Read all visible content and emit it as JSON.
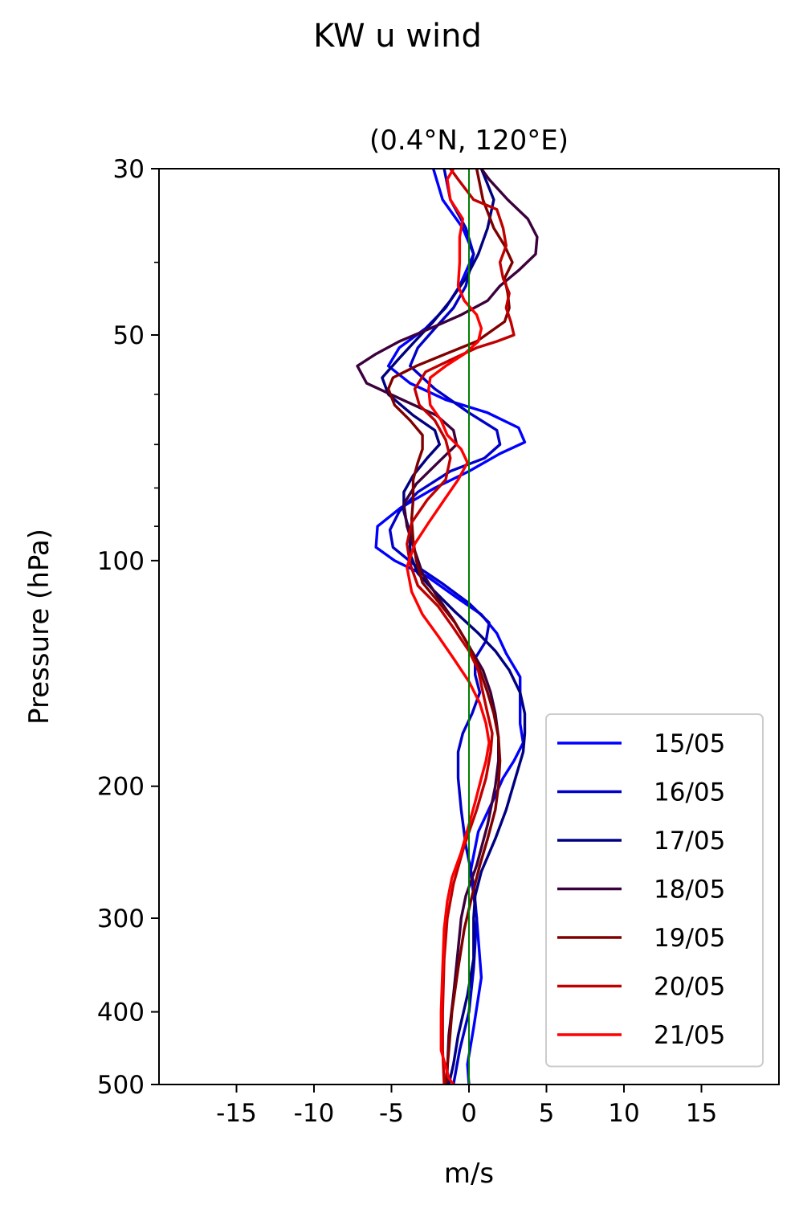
{
  "figure": {
    "suptitle": "KW u wind"
  },
  "chart_data": {
    "type": "line",
    "title": "(0.4°N, 120°E)",
    "xlabel": "m/s",
    "ylabel": "Pressure (hPa)",
    "xlim": [
      -20,
      20
    ],
    "ylim": [
      500,
      30
    ],
    "yscale": "log",
    "x_ticks": [
      -15,
      -10,
      -5,
      0,
      5,
      10,
      15
    ],
    "x_tick_labels": [
      "-15",
      "-10",
      "-5",
      "0",
      "5",
      "10",
      "15"
    ],
    "y_ticks": [
      30,
      50,
      100,
      200,
      300,
      400,
      500
    ],
    "y_tick_labels": [
      "30",
      "50",
      "100",
      "200",
      "300",
      "400",
      "500"
    ],
    "y_minor_ticks": [
      40,
      60,
      70,
      80,
      90
    ],
    "reference_line": {
      "x": 0,
      "color": "#008000"
    },
    "legend_position": "lower right",
    "series": [
      {
        "name": "15/05",
        "color": "#0000ff",
        "points": [
          [
            -2.3,
            30
          ],
          [
            -1.7,
            33
          ],
          [
            -0.4,
            36
          ],
          [
            0.3,
            39
          ],
          [
            -0.6,
            43
          ],
          [
            -1.5,
            46
          ],
          [
            -2.8,
            49
          ],
          [
            -4.5,
            52
          ],
          [
            -5.2,
            55
          ],
          [
            -3.8,
            58
          ],
          [
            -1.5,
            61
          ],
          [
            1.2,
            63.5
          ],
          [
            3.2,
            66.5
          ],
          [
            3.6,
            69.5
          ],
          [
            2.0,
            72
          ],
          [
            0,
            76
          ],
          [
            -2.2,
            80
          ],
          [
            -4.4,
            85
          ],
          [
            -5.9,
            90
          ],
          [
            -6.0,
            96
          ],
          [
            -4.8,
            100
          ],
          [
            -2.7,
            105
          ],
          [
            -0.8,
            112
          ],
          [
            0.8,
            118
          ],
          [
            1.8,
            125
          ],
          [
            2.4,
            133
          ],
          [
            3.3,
            143
          ],
          [
            3.3,
            155
          ],
          [
            3.3,
            165
          ],
          [
            3.5,
            175
          ],
          [
            2.9,
            185
          ],
          [
            2.2,
            195
          ],
          [
            1.5,
            210
          ],
          [
            0.6,
            230
          ],
          [
            0.1,
            260
          ],
          [
            0.5,
            300
          ],
          [
            0.8,
            360
          ],
          [
            0.3,
            420
          ],
          [
            -0.1,
            470
          ],
          [
            0,
            500
          ]
        ]
      },
      {
        "name": "16/05",
        "color": "#0000c8",
        "points": [
          [
            -1.6,
            30
          ],
          [
            -1.2,
            33
          ],
          [
            -0.2,
            36
          ],
          [
            0.3,
            39
          ],
          [
            -0.2,
            43
          ],
          [
            -1.0,
            46
          ],
          [
            -2.2,
            49
          ],
          [
            -3.3,
            52
          ],
          [
            -3.8,
            55
          ],
          [
            -2.2,
            59
          ],
          [
            0,
            63.5
          ],
          [
            1.8,
            67
          ],
          [
            2.0,
            70
          ],
          [
            1.0,
            73
          ],
          [
            -1.2,
            76
          ],
          [
            -3.3,
            81
          ],
          [
            -4.5,
            86
          ],
          [
            -5.1,
            91
          ],
          [
            -4.9,
            96
          ],
          [
            -3.6,
            101
          ],
          [
            -1.8,
            107
          ],
          [
            0,
            114
          ],
          [
            1.3,
            121
          ],
          [
            1.1,
            128
          ],
          [
            0.4,
            135
          ],
          [
            0.4,
            142
          ],
          [
            0.7,
            150
          ],
          [
            0.2,
            160
          ],
          [
            -0.4,
            170
          ],
          [
            -0.7,
            180
          ],
          [
            -0.7,
            195
          ],
          [
            -0.5,
            215
          ],
          [
            -0.2,
            240
          ],
          [
            0.3,
            270
          ],
          [
            0.5,
            300
          ],
          [
            0.3,
            350
          ],
          [
            0,
            400
          ],
          [
            -0.6,
            450
          ],
          [
            -1.0,
            500
          ]
        ]
      },
      {
        "name": "17/05",
        "color": "#000080",
        "points": [
          [
            0.8,
            30
          ],
          [
            1.6,
            33
          ],
          [
            1.2,
            36
          ],
          [
            0.6,
            39
          ],
          [
            -0.2,
            42
          ],
          [
            -1.2,
            45
          ],
          [
            -2.3,
            48
          ],
          [
            -3.5,
            51
          ],
          [
            -4.6,
            54
          ],
          [
            -5.6,
            57
          ],
          [
            -5.2,
            60
          ],
          [
            -3.6,
            64
          ],
          [
            -2.2,
            67
          ],
          [
            -1.9,
            70
          ],
          [
            -2.7,
            73
          ],
          [
            -3.6,
            77
          ],
          [
            -4.2,
            81
          ],
          [
            -4.2,
            86
          ],
          [
            -3.8,
            92
          ],
          [
            -3.8,
            98
          ],
          [
            -3.3,
            104
          ],
          [
            -2.2,
            110
          ],
          [
            -0.9,
            117
          ],
          [
            0.6,
            125
          ],
          [
            1.7,
            132
          ],
          [
            2.6,
            140
          ],
          [
            3.3,
            150
          ],
          [
            3.6,
            160
          ],
          [
            3.6,
            170
          ],
          [
            3.5,
            180
          ],
          [
            3.0,
            195
          ],
          [
            2.4,
            215
          ],
          [
            1.7,
            235
          ],
          [
            0.8,
            260
          ],
          [
            0.4,
            280
          ],
          [
            0.3,
            300
          ],
          [
            0.3,
            340
          ],
          [
            -0.1,
            380
          ],
          [
            -0.7,
            430
          ],
          [
            -1.0,
            470
          ],
          [
            -1.3,
            500
          ]
        ]
      },
      {
        "name": "18/05",
        "color": "#3c003c",
        "points": [
          [
            0.8,
            30
          ],
          [
            1.3,
            31
          ],
          [
            2.5,
            33
          ],
          [
            3.8,
            35
          ],
          [
            4.4,
            37
          ],
          [
            4.3,
            39
          ],
          [
            3.2,
            41
          ],
          [
            2.0,
            43
          ],
          [
            1.2,
            45
          ],
          [
            -0.5,
            47
          ],
          [
            -2.5,
            49
          ],
          [
            -4.5,
            51
          ],
          [
            -6.0,
            53
          ],
          [
            -7.2,
            55
          ],
          [
            -6.6,
            58
          ],
          [
            -4.3,
            61
          ],
          [
            -2.1,
            64
          ],
          [
            -1.0,
            67
          ],
          [
            -0.8,
            70
          ],
          [
            -2.0,
            74
          ],
          [
            -3.4,
            79
          ],
          [
            -4.2,
            84
          ],
          [
            -4.0,
            90
          ],
          [
            -3.5,
            97
          ],
          [
            -3.0,
            104
          ],
          [
            -2.0,
            112
          ],
          [
            -1.0,
            120
          ],
          [
            0,
            130
          ],
          [
            0.9,
            140
          ],
          [
            1.4,
            150
          ],
          [
            1.7,
            160
          ],
          [
            1.9,
            172
          ],
          [
            1.9,
            185
          ],
          [
            1.7,
            200
          ],
          [
            1.2,
            225
          ],
          [
            0.5,
            255
          ],
          [
            -0.2,
            280
          ],
          [
            -0.5,
            300
          ],
          [
            -0.7,
            330
          ],
          [
            -1.0,
            380
          ],
          [
            -1.3,
            430
          ],
          [
            -1.4,
            480
          ],
          [
            -1.4,
            500
          ]
        ]
      },
      {
        "name": "19/05",
        "color": "#800000",
        "points": [
          [
            0.5,
            30
          ],
          [
            0.9,
            33
          ],
          [
            1.6,
            36
          ],
          [
            2.3,
            38
          ],
          [
            2.8,
            40
          ],
          [
            2.3,
            42
          ],
          [
            2.5,
            44
          ],
          [
            2.6,
            46
          ],
          [
            2.3,
            48
          ],
          [
            0.5,
            51
          ],
          [
            -1.5,
            53
          ],
          [
            -3.4,
            55
          ],
          [
            -4.9,
            57
          ],
          [
            -5.2,
            59
          ],
          [
            -4.8,
            62
          ],
          [
            -3.8,
            65
          ],
          [
            -3.0,
            68
          ],
          [
            -3.0,
            71
          ],
          [
            -3.3,
            74
          ],
          [
            -3.6,
            78
          ],
          [
            -3.6,
            83
          ],
          [
            -3.7,
            88
          ],
          [
            -3.6,
            94
          ],
          [
            -3.4,
            100
          ],
          [
            -3.0,
            107
          ],
          [
            -1.9,
            114
          ],
          [
            -0.9,
            121
          ],
          [
            0,
            130
          ],
          [
            0.7,
            140
          ],
          [
            1.2,
            150
          ],
          [
            1.6,
            160
          ],
          [
            1.9,
            172
          ],
          [
            2.0,
            185
          ],
          [
            1.9,
            200
          ],
          [
            1.7,
            215
          ],
          [
            1.2,
            235
          ],
          [
            0.7,
            255
          ],
          [
            0.2,
            280
          ],
          [
            -0.3,
            310
          ],
          [
            -0.7,
            350
          ],
          [
            -1.1,
            400
          ],
          [
            -1.3,
            450
          ],
          [
            -1.5,
            500
          ]
        ]
      },
      {
        "name": "20/05",
        "color": "#c00000",
        "points": [
          [
            -1.2,
            30
          ],
          [
            -0.7,
            31
          ],
          [
            0.3,
            33
          ],
          [
            1.8,
            34
          ],
          [
            2.2,
            36
          ],
          [
            2.4,
            38
          ],
          [
            2.0,
            40
          ],
          [
            2.2,
            42
          ],
          [
            2.6,
            44
          ],
          [
            2.4,
            46
          ],
          [
            2.7,
            48
          ],
          [
            2.9,
            50
          ],
          [
            1.8,
            51
          ],
          [
            0.5,
            52
          ],
          [
            -1.2,
            54
          ],
          [
            -2.8,
            56
          ],
          [
            -3.5,
            59
          ],
          [
            -3.2,
            62
          ],
          [
            -2.2,
            65
          ],
          [
            -1.5,
            69
          ],
          [
            -1.2,
            73
          ],
          [
            -1.5,
            78
          ],
          [
            -2.7,
            83
          ],
          [
            -3.7,
            89
          ],
          [
            -4.0,
            95
          ],
          [
            -3.8,
            101
          ],
          [
            -3.3,
            108
          ],
          [
            -2.0,
            115
          ],
          [
            -1.0,
            123
          ],
          [
            0,
            132
          ],
          [
            0.6,
            140
          ],
          [
            0.9,
            150
          ],
          [
            1.2,
            160
          ],
          [
            1.5,
            170
          ],
          [
            1.4,
            180
          ],
          [
            1.1,
            195
          ],
          [
            0.5,
            215
          ],
          [
            -0.3,
            240
          ],
          [
            -1.0,
            270
          ],
          [
            -1.4,
            300
          ],
          [
            -1.6,
            340
          ],
          [
            -1.7,
            400
          ],
          [
            -1.7,
            450
          ],
          [
            -1.6,
            500
          ]
        ]
      },
      {
        "name": "21/05",
        "color": "#ff0000",
        "points": [
          [
            -1.0,
            30
          ],
          [
            -1.4,
            31
          ],
          [
            -1.2,
            33
          ],
          [
            -0.4,
            35
          ],
          [
            -0.6,
            37
          ],
          [
            -0.6,
            40
          ],
          [
            -0.7,
            43
          ],
          [
            -0.3,
            45
          ],
          [
            0.5,
            47
          ],
          [
            0.8,
            49
          ],
          [
            0.6,
            51
          ],
          [
            -0.3,
            53
          ],
          [
            -1.5,
            55
          ],
          [
            -2.5,
            57
          ],
          [
            -2.6,
            59
          ],
          [
            -2.5,
            62
          ],
          [
            -1.8,
            65
          ],
          [
            -1.4,
            68
          ],
          [
            -0.5,
            71
          ],
          [
            -0.1,
            74
          ],
          [
            -0.7,
            78
          ],
          [
            -1.6,
            83
          ],
          [
            -2.6,
            89
          ],
          [
            -3.5,
            95
          ],
          [
            -4.0,
            102
          ],
          [
            -3.7,
            110
          ],
          [
            -3.0,
            118
          ],
          [
            -2.0,
            126
          ],
          [
            -1.0,
            135
          ],
          [
            0,
            145
          ],
          [
            0.7,
            155
          ],
          [
            1.1,
            165
          ],
          [
            1.3,
            175
          ],
          [
            1.1,
            185
          ],
          [
            0.8,
            195
          ],
          [
            0.4,
            210
          ],
          [
            0,
            225
          ],
          [
            -0.5,
            245
          ],
          [
            -1.1,
            265
          ],
          [
            -1.4,
            285
          ],
          [
            -1.6,
            310
          ],
          [
            -1.7,
            350
          ],
          [
            -1.8,
            400
          ],
          [
            -1.8,
            450
          ],
          [
            -1.3,
            490
          ],
          [
            -1.0,
            500
          ]
        ]
      }
    ]
  }
}
